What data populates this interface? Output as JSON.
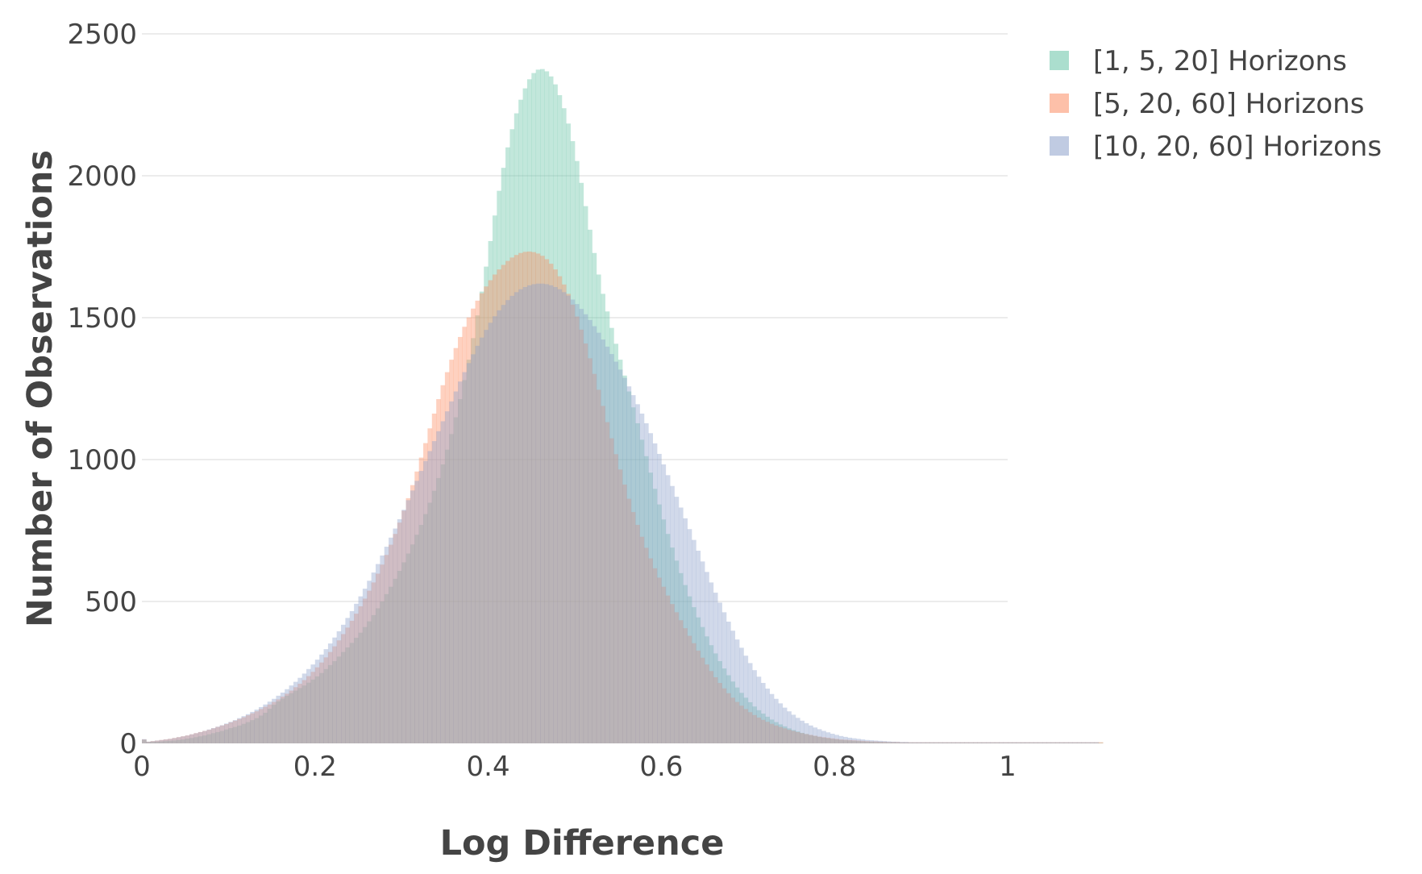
{
  "chart_data": {
    "type": "bar",
    "subtype": "overlaid-histogram",
    "title": "",
    "xlabel": "Log Difference",
    "ylabel": "Number of Observations",
    "xlim": [
      0,
      1
    ],
    "ylim": [
      0,
      2500
    ],
    "x_ticks": [
      0,
      0.2,
      0.4,
      0.6,
      0.8,
      1
    ],
    "x_tick_labels": [
      "0",
      "0.2",
      "0.4",
      "0.6",
      "0.8",
      "1"
    ],
    "y_ticks": [
      0,
      500,
      1000,
      1500,
      2000,
      2500
    ],
    "y_tick_labels": [
      "0",
      "500",
      "1000",
      "1500",
      "2000",
      "2500"
    ],
    "grid": true,
    "legend_position": "top-right",
    "bin_width": 0.005,
    "series": [
      {
        "name": "[1, 5, 20] Horizons",
        "color": "#66c2a5",
        "opacity": 0.4,
        "values": [
          13,
          5,
          6,
          6,
          7,
          8,
          9,
          10,
          12,
          14,
          17,
          19,
          22,
          25,
          28,
          32,
          36,
          40,
          44,
          49,
          54,
          58,
          63,
          69,
          75,
          82,
          89,
          98,
          108,
          122,
          136,
          148,
          158,
          168,
          177,
          186,
          195,
          204,
          214,
          225,
          236,
          248,
          262,
          276,
          290,
          306,
          322,
          338,
          354,
          372,
          390,
          410,
          430,
          452,
          476,
          500,
          526,
          552,
          580,
          608,
          638,
          669,
          701,
          735,
          770,
          808,
          848,
          890,
          935,
          983,
          1035,
          1090,
          1149,
          1213,
          1280,
          1352,
          1428,
          1508,
          1592,
          1680,
          1770,
          1860,
          1947,
          2028,
          2100,
          2164,
          2220,
          2268,
          2308,
          2340,
          2362,
          2374,
          2376,
          2368,
          2350,
          2322,
          2284,
          2238,
          2184,
          2122,
          2052,
          1975,
          1893,
          1810,
          1728,
          1652,
          1584,
          1522,
          1464,
          1408,
          1352,
          1296,
          1240,
          1184,
          1128,
          1070,
          1012,
          954,
          897,
          842,
          789,
          738,
          690,
          644,
          600,
          558,
          518,
          480,
          444,
          410,
          377,
          346,
          317,
          290,
          264,
          240,
          218,
          197,
          178,
          161,
          145,
          130,
          117,
          105,
          94,
          84,
          75,
          67,
          60,
          53,
          47,
          42,
          37,
          33,
          29,
          26,
          23,
          20,
          18,
          16,
          14,
          12,
          11,
          10,
          9,
          8,
          7,
          6,
          6,
          5,
          5,
          4,
          4,
          4,
          3,
          3,
          3,
          3,
          3,
          3,
          3,
          3,
          3,
          3,
          3,
          3,
          3,
          3,
          3,
          3,
          3,
          3,
          3,
          3,
          3,
          3,
          3,
          3,
          3,
          3,
          3,
          3,
          3,
          3,
          3,
          3,
          3,
          3,
          3,
          3,
          3,
          3,
          3,
          3,
          3,
          3,
          3,
          3,
          3,
          3,
          3,
          3
        ]
      },
      {
        "name": "[5, 20, 60] Horizons",
        "color": "#fc8d62",
        "opacity": 0.4,
        "values": [
          14,
          6,
          8,
          10,
          12,
          14,
          16,
          19,
          22,
          25,
          28,
          32,
          36,
          40,
          44,
          48,
          53,
          58,
          63,
          68,
          74,
          80,
          86,
          92,
          99,
          106,
          113,
          121,
          129,
          137,
          146,
          155,
          165,
          175,
          186,
          198,
          210,
          223,
          237,
          252,
          268,
          285,
          303,
          322,
          342,
          363,
          385,
          408,
          432,
          457,
          483,
          510,
          538,
          567,
          598,
          630,
          664,
          700,
          738,
          778,
          820,
          864,
          910,
          958,
          1007,
          1058,
          1110,
          1162,
          1213,
          1262,
          1308,
          1352,
          1393,
          1432,
          1468,
          1501,
          1532,
          1560,
          1586,
          1610,
          1632,
          1652,
          1670,
          1686,
          1700,
          1712,
          1721,
          1728,
          1732,
          1733,
          1731,
          1726,
          1718,
          1706,
          1690,
          1670,
          1646,
          1617,
          1584,
          1546,
          1504,
          1458,
          1409,
          1357,
          1302,
          1246,
          1189,
          1132,
          1075,
          1019,
          965,
          912,
          862,
          815,
          770,
          728,
          689,
          652,
          617,
          584,
          552,
          521,
          491,
          462,
          434,
          406,
          379,
          353,
          327,
          302,
          278,
          255,
          233,
          213,
          194,
          177,
          161,
          146,
          133,
          121,
          110,
          100,
          91,
          83,
          76,
          69,
          63,
          58,
          53,
          48,
          44,
          40,
          36,
          33,
          30,
          27,
          24,
          22,
          20,
          18,
          16,
          14,
          13,
          12,
          11,
          10,
          9,
          8,
          7,
          7,
          6,
          6,
          5,
          5,
          5,
          4,
          4,
          4,
          4,
          4,
          4,
          4,
          4,
          4,
          4,
          4,
          4,
          4,
          4,
          4,
          4,
          4,
          4,
          4,
          4,
          4,
          4,
          4,
          4,
          4,
          4,
          4,
          4,
          4,
          4,
          4,
          4,
          4,
          4,
          4,
          4,
          4,
          4,
          4,
          4,
          4,
          4,
          4,
          4,
          4,
          4,
          4
        ]
      },
      {
        "name": "[10, 20, 60] Horizons",
        "color": "#8da0cb",
        "opacity": 0.4,
        "values": [
          15,
          6,
          8,
          10,
          12,
          14,
          16,
          19,
          22,
          25,
          28,
          32,
          36,
          40,
          44,
          49,
          54,
          59,
          64,
          70,
          76,
          82,
          89,
          96,
          103,
          111,
          119,
          128,
          137,
          147,
          157,
          168,
          179,
          191,
          204,
          217,
          231,
          246,
          262,
          278,
          295,
          313,
          332,
          352,
          373,
          395,
          418,
          442,
          466,
          492,
          518,
          545,
          573,
          602,
          632,
          662,
          693,
          725,
          757,
          790,
          823,
          857,
          891,
          925,
          960,
          995,
          1030,
          1065,
          1100,
          1135,
          1170,
          1205,
          1240,
          1275,
          1308,
          1340,
          1371,
          1401,
          1430,
          1457,
          1482,
          1505,
          1526,
          1545,
          1562,
          1577,
          1590,
          1600,
          1608,
          1614,
          1618,
          1620,
          1620,
          1618,
          1614,
          1608,
          1600,
          1590,
          1578,
          1564,
          1548,
          1531,
          1512,
          1492,
          1470,
          1447,
          1423,
          1398,
          1372,
          1345,
          1317,
          1288,
          1258,
          1227,
          1195,
          1162,
          1128,
          1093,
          1057,
          1020,
          983,
          945,
          907,
          869,
          831,
          793,
          755,
          717,
          679,
          641,
          604,
          567,
          531,
          496,
          462,
          429,
          397,
          366,
          337,
          309,
          283,
          258,
          235,
          213,
          193,
          174,
          157,
          141,
          126,
          113,
          101,
          90,
          80,
          71,
          63,
          56,
          50,
          44,
          39,
          34,
          30,
          26,
          23,
          20,
          18,
          16,
          14,
          12,
          11,
          10,
          9,
          8,
          7,
          6,
          6,
          5,
          5,
          4,
          4,
          4,
          4,
          4,
          4,
          4,
          4,
          4,
          4,
          4,
          4,
          4,
          4,
          4,
          4,
          4,
          4,
          4,
          4,
          4,
          4,
          4,
          4,
          4,
          4,
          4,
          4,
          4,
          4,
          4,
          4,
          4,
          4,
          4,
          4,
          4,
          4,
          4,
          4,
          4,
          4,
          4,
          4
        ]
      }
    ]
  }
}
